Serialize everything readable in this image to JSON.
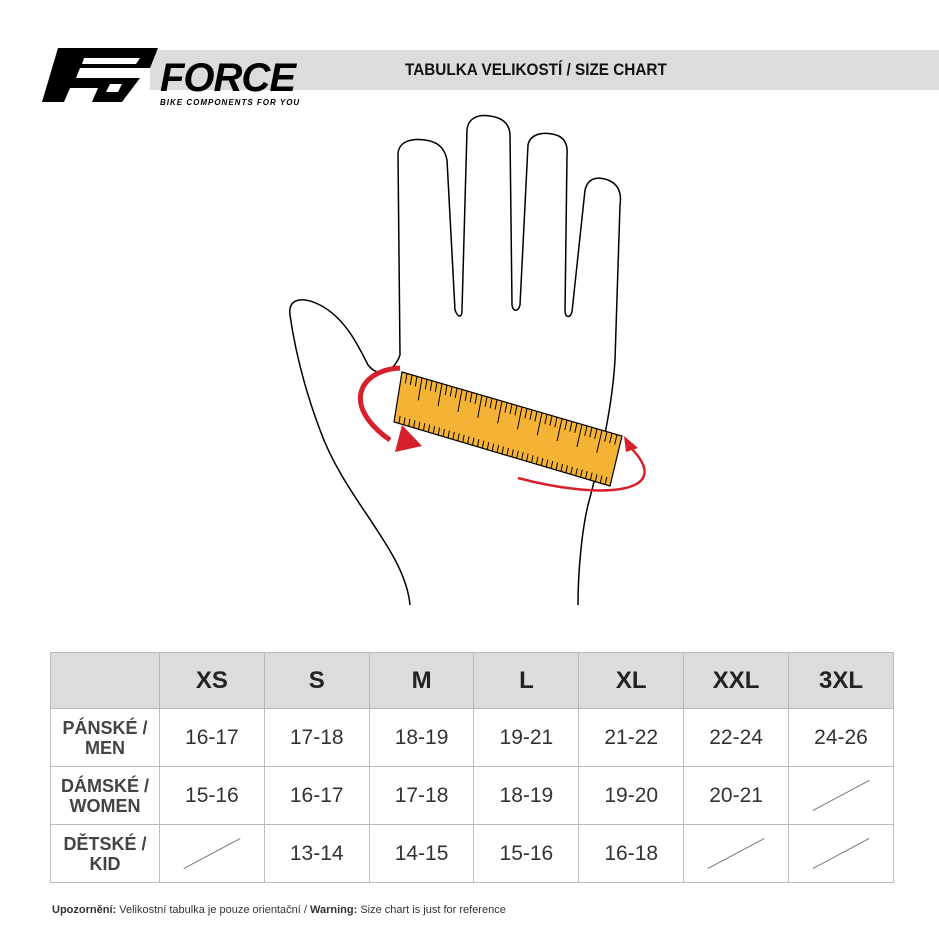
{
  "header": {
    "brand": "FORCE",
    "tagline": "BIKE COMPONENTS FOR YOU",
    "title": "TABULKA VELIKOSTÍ / SIZE CHART"
  },
  "colors": {
    "ruler": "#f5b335",
    "arrow": "#d8202c",
    "header_band": "#dcdcdc"
  },
  "table": {
    "sizes": [
      "XS",
      "S",
      "M",
      "L",
      "XL",
      "XXL",
      "3XL"
    ],
    "rows": [
      {
        "label": "PÁNSKÉ / MEN",
        "values": [
          "16-17",
          "17-18",
          "18-19",
          "19-21",
          "21-22",
          "22-24",
          "24-26"
        ]
      },
      {
        "label": "DÁMSKÉ / WOMEN",
        "values": [
          "15-16",
          "16-17",
          "17-18",
          "18-19",
          "19-20",
          "20-21",
          null
        ]
      },
      {
        "label": "DĚTSKÉ / KID",
        "values": [
          null,
          "13-14",
          "14-15",
          "15-16",
          "16-18",
          null,
          null
        ]
      }
    ]
  },
  "note": {
    "label_cz": "Upozornění:",
    "text_cz": " Velikostní tabulka je pouze orientační / ",
    "label_en": "Warning:",
    "text_en": " Size chart is just for reference"
  }
}
